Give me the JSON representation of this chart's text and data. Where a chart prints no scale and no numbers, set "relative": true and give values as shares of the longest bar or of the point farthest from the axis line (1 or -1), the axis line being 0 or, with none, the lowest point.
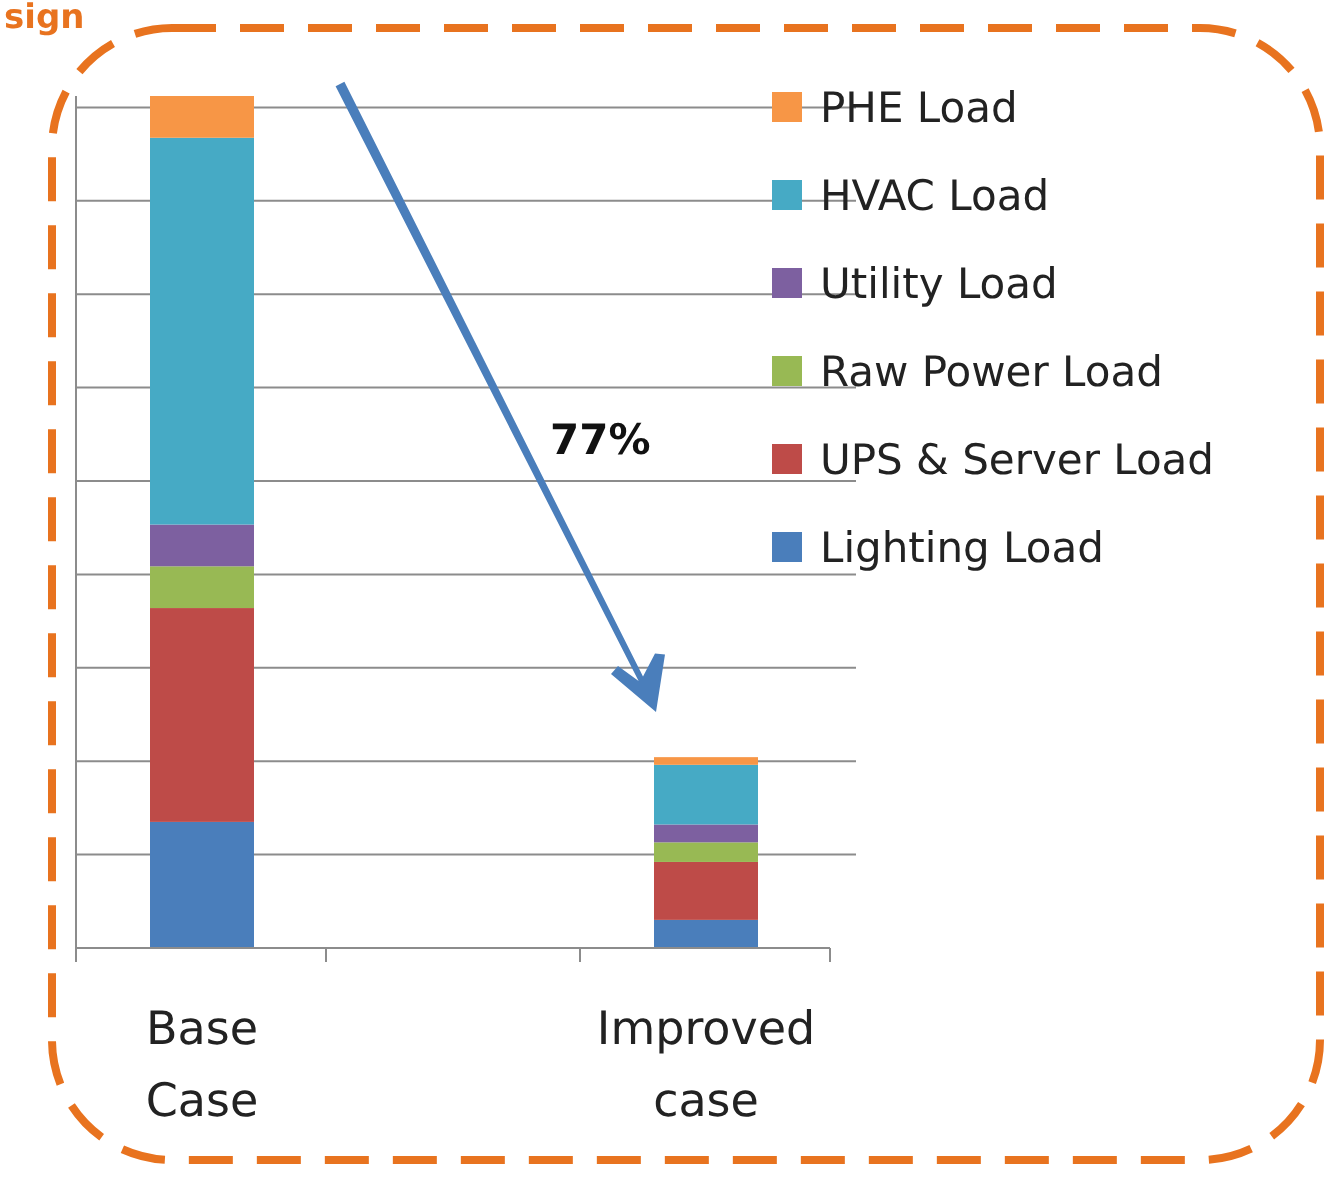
{
  "chart_data": {
    "type": "bar",
    "title": "sign",
    "stacked": true,
    "relative": true,
    "grid": "y",
    "legend": "top right",
    "categories": [
      "Base Case",
      "Improved case"
    ],
    "series": [
      {
        "name": "Lighting Load",
        "color": "#4a7ebb",
        "values": [
          0.148,
          0.033
        ]
      },
      {
        "name": "UPS & Server Load",
        "color": "#be4b48",
        "values": [
          0.251,
          0.068
        ]
      },
      {
        "name": "Raw Power Load",
        "color": "#98b954",
        "values": [
          0.049,
          0.023
        ]
      },
      {
        "name": "Utility Load",
        "color": "#7d60a0",
        "values": [
          0.049,
          0.021
        ]
      },
      {
        "name": "HVAC Load",
        "color": "#46aac5",
        "values": [
          0.454,
          0.07
        ]
      },
      {
        "name": "PHE Load",
        "color": "#f79646",
        "values": [
          0.049,
          0.009
        ]
      }
    ],
    "annotations": [
      "77%"
    ]
  }
}
